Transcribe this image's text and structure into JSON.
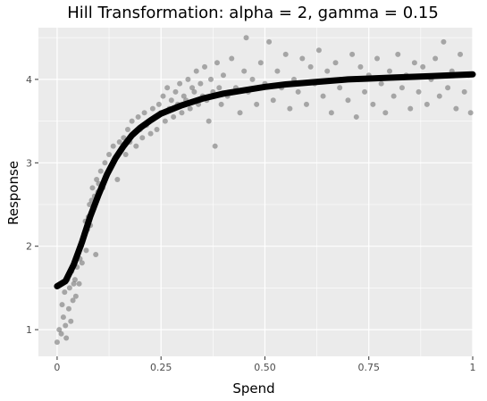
{
  "chart_data": {
    "type": "scatter",
    "title": "Hill Transformation: alpha = 2, gamma = 0.15",
    "xlabel": "Spend",
    "ylabel": "Response",
    "xlim": [
      -0.045,
      1.0
    ],
    "ylim": [
      0.68,
      4.62
    ],
    "x_ticks": [
      0,
      0.25,
      0.5,
      0.75,
      1
    ],
    "x_tick_labels": [
      "0",
      "0.25",
      "0.50",
      "0.75",
      "1"
    ],
    "y_ticks": [
      1,
      2,
      3,
      4
    ],
    "y_tick_labels": [
      "1",
      "2",
      "3",
      "4"
    ],
    "grid": true,
    "legend": "none",
    "colors": {
      "panel": "#ebebeb",
      "grid": "#ffffff",
      "points": "#7f7f7f",
      "curve": "#000000"
    },
    "series": [
      {
        "kind": "scatter",
        "points": [
          [
            0.0,
            0.85
          ],
          [
            0.005,
            1.0
          ],
          [
            0.01,
            0.95
          ],
          [
            0.012,
            1.3
          ],
          [
            0.015,
            1.15
          ],
          [
            0.018,
            1.45
          ],
          [
            0.02,
            1.05
          ],
          [
            0.022,
            0.9
          ],
          [
            0.025,
            1.6
          ],
          [
            0.028,
            1.25
          ],
          [
            0.03,
            1.5
          ],
          [
            0.033,
            1.1
          ],
          [
            0.035,
            1.7
          ],
          [
            0.038,
            1.35
          ],
          [
            0.04,
            1.55
          ],
          [
            0.043,
            1.6
          ],
          [
            0.045,
            1.4
          ],
          [
            0.048,
            1.75
          ],
          [
            0.05,
            1.9
          ],
          [
            0.053,
            1.55
          ],
          [
            0.055,
            1.85
          ],
          [
            0.058,
            2.0
          ],
          [
            0.06,
            1.8
          ],
          [
            0.063,
            2.1
          ],
          [
            0.065,
            2.15
          ],
          [
            0.068,
            2.3
          ],
          [
            0.07,
            1.95
          ],
          [
            0.073,
            2.2
          ],
          [
            0.075,
            2.35
          ],
          [
            0.078,
            2.5
          ],
          [
            0.08,
            2.25
          ],
          [
            0.083,
            2.55
          ],
          [
            0.085,
            2.7
          ],
          [
            0.088,
            2.45
          ],
          [
            0.09,
            2.6
          ],
          [
            0.093,
            1.9
          ],
          [
            0.095,
            2.8
          ],
          [
            0.098,
            2.65
          ],
          [
            0.1,
            2.75
          ],
          [
            0.105,
            2.9
          ],
          [
            0.11,
            2.7
          ],
          [
            0.115,
            3.0
          ],
          [
            0.12,
            2.85
          ],
          [
            0.125,
            3.1
          ],
          [
            0.13,
            2.95
          ],
          [
            0.135,
            3.2
          ],
          [
            0.14,
            3.05
          ],
          [
            0.145,
            2.8
          ],
          [
            0.15,
            3.25
          ],
          [
            0.155,
            3.15
          ],
          [
            0.16,
            3.3
          ],
          [
            0.165,
            3.1
          ],
          [
            0.17,
            3.4
          ],
          [
            0.175,
            3.25
          ],
          [
            0.18,
            3.5
          ],
          [
            0.185,
            3.35
          ],
          [
            0.19,
            3.2
          ],
          [
            0.195,
            3.55
          ],
          [
            0.2,
            3.4
          ],
          [
            0.205,
            3.3
          ],
          [
            0.21,
            3.6
          ],
          [
            0.215,
            3.45
          ],
          [
            0.22,
            3.5
          ],
          [
            0.225,
            3.35
          ],
          [
            0.23,
            3.65
          ],
          [
            0.235,
            3.55
          ],
          [
            0.24,
            3.4
          ],
          [
            0.245,
            3.7
          ],
          [
            0.25,
            3.6
          ],
          [
            0.255,
            3.8
          ],
          [
            0.26,
            3.5
          ],
          [
            0.265,
            3.9
          ],
          [
            0.27,
            3.65
          ],
          [
            0.275,
            3.75
          ],
          [
            0.28,
            3.55
          ],
          [
            0.285,
            3.85
          ],
          [
            0.29,
            3.7
          ],
          [
            0.295,
            3.95
          ],
          [
            0.3,
            3.6
          ],
          [
            0.305,
            3.8
          ],
          [
            0.31,
            3.75
          ],
          [
            0.315,
            4.0
          ],
          [
            0.32,
            3.65
          ],
          [
            0.325,
            3.9
          ],
          [
            0.33,
            3.85
          ],
          [
            0.335,
            4.1
          ],
          [
            0.34,
            3.7
          ],
          [
            0.345,
            3.95
          ],
          [
            0.35,
            3.8
          ],
          [
            0.355,
            4.15
          ],
          [
            0.36,
            3.75
          ],
          [
            0.365,
            3.5
          ],
          [
            0.37,
            4.0
          ],
          [
            0.375,
            3.85
          ],
          [
            0.38,
            3.2
          ],
          [
            0.385,
            4.2
          ],
          [
            0.39,
            3.9
          ],
          [
            0.395,
            3.7
          ],
          [
            0.4,
            4.05
          ],
          [
            0.41,
            3.8
          ],
          [
            0.42,
            4.25
          ],
          [
            0.43,
            3.9
          ],
          [
            0.44,
            3.6
          ],
          [
            0.45,
            4.1
          ],
          [
            0.455,
            4.5
          ],
          [
            0.46,
            3.85
          ],
          [
            0.47,
            4.0
          ],
          [
            0.48,
            3.7
          ],
          [
            0.49,
            4.2
          ],
          [
            0.5,
            3.95
          ],
          [
            0.51,
            4.45
          ],
          [
            0.52,
            3.75
          ],
          [
            0.53,
            4.1
          ],
          [
            0.54,
            3.9
          ],
          [
            0.55,
            4.3
          ],
          [
            0.56,
            3.65
          ],
          [
            0.57,
            4.0
          ],
          [
            0.58,
            3.85
          ],
          [
            0.59,
            4.25
          ],
          [
            0.6,
            3.7
          ],
          [
            0.61,
            4.15
          ],
          [
            0.62,
            3.95
          ],
          [
            0.63,
            4.35
          ],
          [
            0.64,
            3.8
          ],
          [
            0.65,
            4.1
          ],
          [
            0.66,
            3.6
          ],
          [
            0.67,
            4.2
          ],
          [
            0.68,
            3.9
          ],
          [
            0.69,
            4.0
          ],
          [
            0.7,
            3.75
          ],
          [
            0.71,
            4.3
          ],
          [
            0.72,
            3.55
          ],
          [
            0.73,
            4.15
          ],
          [
            0.74,
            3.85
          ],
          [
            0.75,
            4.05
          ],
          [
            0.76,
            3.7
          ],
          [
            0.77,
            4.25
          ],
          [
            0.78,
            3.95
          ],
          [
            0.79,
            3.6
          ],
          [
            0.8,
            4.1
          ],
          [
            0.81,
            3.8
          ],
          [
            0.82,
            4.3
          ],
          [
            0.83,
            3.9
          ],
          [
            0.84,
            4.05
          ],
          [
            0.85,
            3.65
          ],
          [
            0.86,
            4.2
          ],
          [
            0.87,
            3.85
          ],
          [
            0.88,
            4.15
          ],
          [
            0.89,
            3.7
          ],
          [
            0.9,
            4.0
          ],
          [
            0.91,
            4.25
          ],
          [
            0.92,
            3.8
          ],
          [
            0.93,
            4.45
          ],
          [
            0.94,
            3.9
          ],
          [
            0.95,
            4.1
          ],
          [
            0.96,
            3.65
          ],
          [
            0.97,
            4.3
          ],
          [
            0.98,
            3.85
          ],
          [
            0.99,
            4.05
          ],
          [
            0.995,
            3.6
          ]
        ]
      },
      {
        "kind": "curve",
        "points": [
          [
            0.0,
            1.52
          ],
          [
            0.02,
            1.58
          ],
          [
            0.04,
            1.78
          ],
          [
            0.06,
            2.05
          ],
          [
            0.08,
            2.36
          ],
          [
            0.1,
            2.62
          ],
          [
            0.12,
            2.86
          ],
          [
            0.14,
            3.05
          ],
          [
            0.16,
            3.2
          ],
          [
            0.18,
            3.33
          ],
          [
            0.2,
            3.42
          ],
          [
            0.225,
            3.51
          ],
          [
            0.25,
            3.59
          ],
          [
            0.3,
            3.69
          ],
          [
            0.35,
            3.77
          ],
          [
            0.4,
            3.83
          ],
          [
            0.45,
            3.87
          ],
          [
            0.5,
            3.91
          ],
          [
            0.55,
            3.94
          ],
          [
            0.6,
            3.96
          ],
          [
            0.65,
            3.98
          ],
          [
            0.7,
            4.0
          ],
          [
            0.75,
            4.01
          ],
          [
            0.8,
            4.02
          ],
          [
            0.85,
            4.03
          ],
          [
            0.9,
            4.04
          ],
          [
            0.95,
            4.05
          ],
          [
            1.0,
            4.06
          ]
        ]
      }
    ]
  }
}
